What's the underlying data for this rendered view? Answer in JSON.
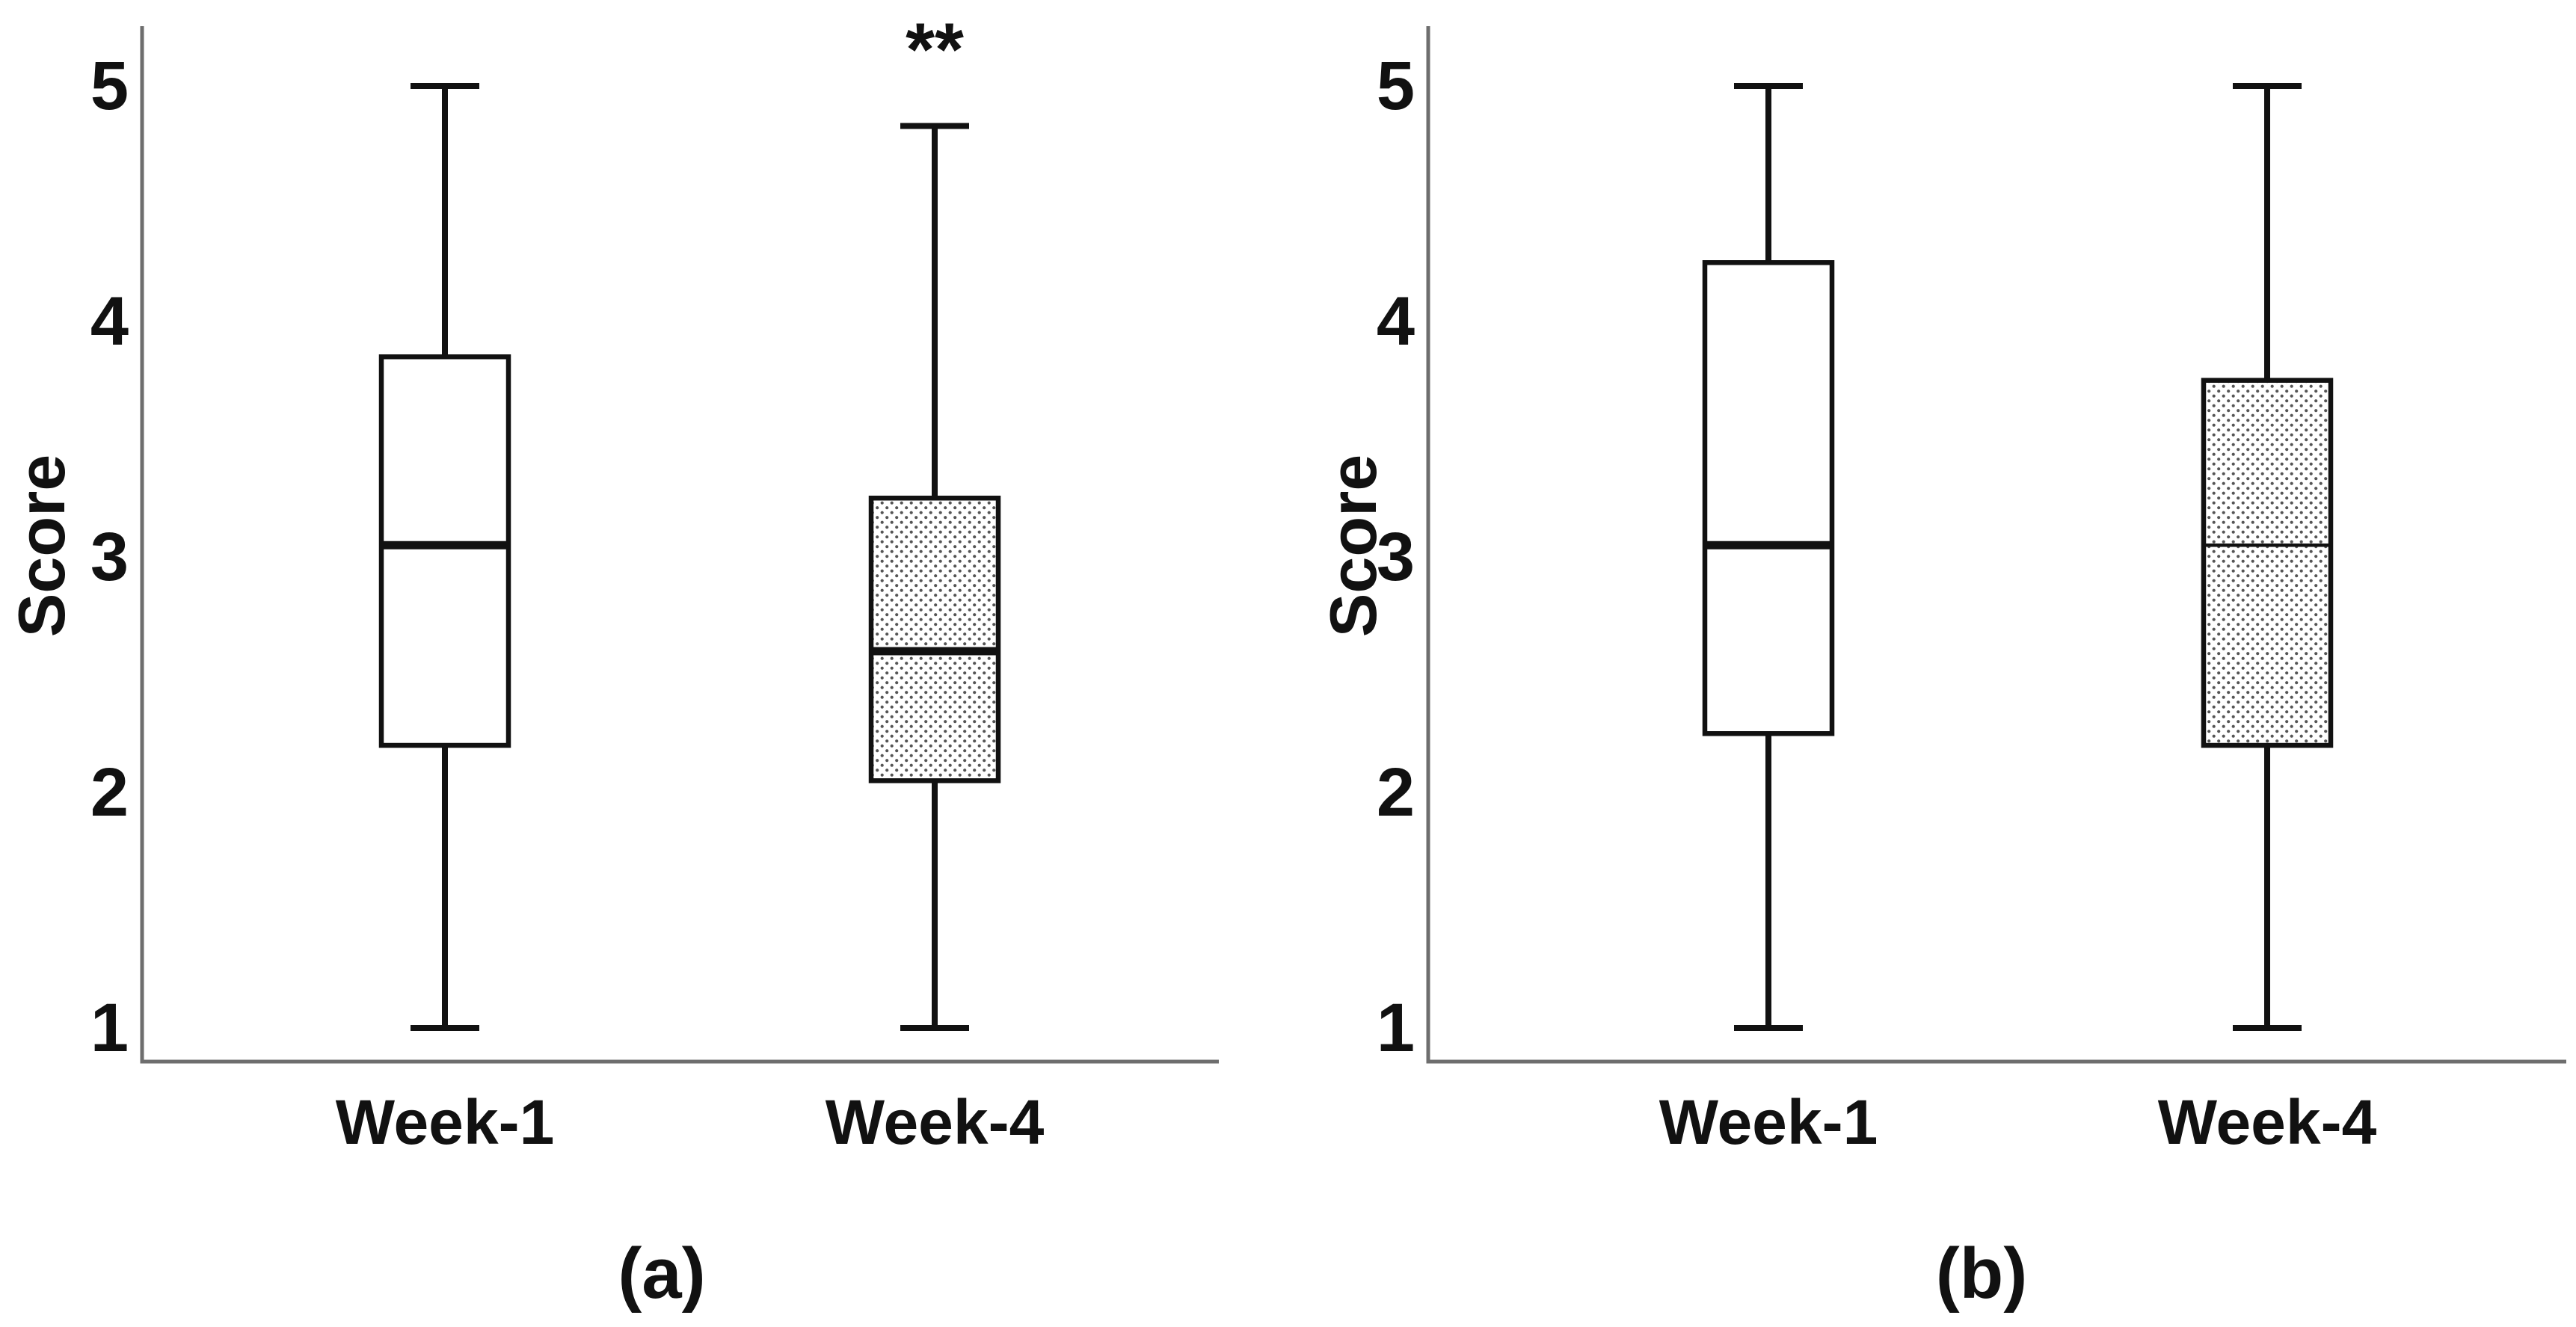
{
  "figure": {
    "background": "#ffffff",
    "axis_color": "#6e6e6e",
    "data_color": "#111111",
    "dot_fill_color": "#555555",
    "box_fill_white": "#ffffff"
  },
  "chart_data": [
    {
      "type": "boxplot",
      "panel_label": "(a)",
      "ylabel": "Score",
      "xlabel": "",
      "yticks": [
        1,
        2,
        3,
        4,
        5
      ],
      "ylim": [
        0.84,
        5.25
      ],
      "grid": false,
      "legend": "none",
      "categories": [
        "Week-1",
        "Week-4"
      ],
      "series": [
        {
          "name": "Week-1",
          "min": 1.0,
          "q1": 2.2,
          "median": 3.05,
          "q3": 3.85,
          "max": 5.0,
          "fill": "white",
          "median_weight": "thick",
          "annotation": ""
        },
        {
          "name": "Week-4",
          "min": 1.0,
          "q1": 2.05,
          "median": 2.6,
          "q3": 3.25,
          "max": 4.83,
          "fill": "dotted",
          "median_weight": "thick",
          "annotation": "**"
        }
      ]
    },
    {
      "type": "boxplot",
      "panel_label": "(b)",
      "ylabel": "Score",
      "xlabel": "",
      "yticks": [
        1,
        2,
        3,
        4,
        5
      ],
      "ylim": [
        0.84,
        5.25
      ],
      "grid": false,
      "legend": "none",
      "categories": [
        "Week-1",
        "Week-4"
      ],
      "series": [
        {
          "name": "Week-1",
          "min": 1.0,
          "q1": 2.25,
          "median": 3.05,
          "q3": 4.25,
          "max": 5.0,
          "fill": "white",
          "median_weight": "thick",
          "annotation": ""
        },
        {
          "name": "Week-4",
          "min": 1.0,
          "q1": 2.2,
          "median": 3.05,
          "q3": 3.75,
          "max": 5.0,
          "fill": "dotted",
          "median_weight": "thin",
          "annotation": ""
        }
      ]
    }
  ]
}
